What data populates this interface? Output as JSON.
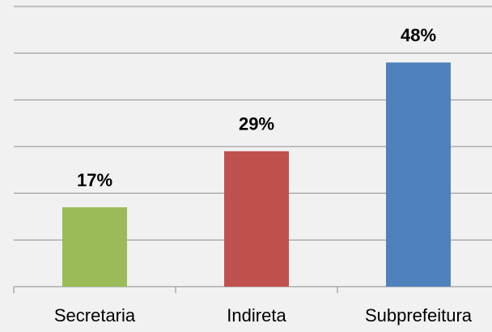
{
  "chart_data": {
    "type": "bar",
    "categories": [
      "Secretaria",
      "Indireta",
      "Subprefeitura"
    ],
    "values": [
      17,
      29,
      48
    ],
    "value_labels": [
      "17%",
      "29%",
      "48%"
    ],
    "colors": [
      "#9bbb59",
      "#c0504d",
      "#4f81bd"
    ],
    "ylim": [
      0,
      60
    ],
    "yticks": [
      0,
      10,
      20,
      30,
      40,
      50,
      60
    ],
    "grid": true
  }
}
